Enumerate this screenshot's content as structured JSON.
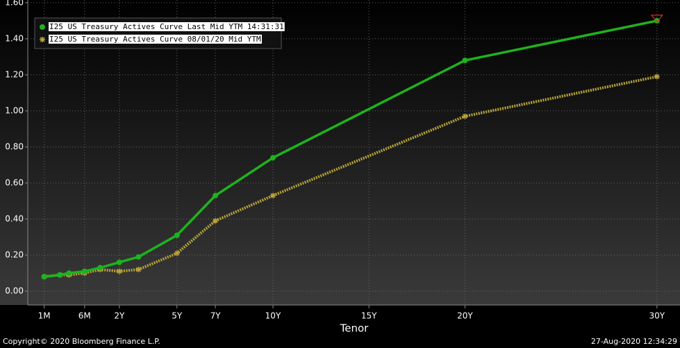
{
  "chart_data": {
    "type": "line",
    "x_label": "Tenor",
    "x": [
      0.083,
      0.167,
      0.25,
      0.5,
      1,
      2,
      3,
      5,
      7,
      10,
      20,
      30
    ],
    "series": [
      {
        "name": "I25 US Treasury Actives Curve Last Mid YTM 14:31:31",
        "color": "#1db31d",
        "marker": "circle",
        "values": [
          0.08,
          0.09,
          0.1,
          0.11,
          0.13,
          0.16,
          0.19,
          0.31,
          0.53,
          0.74,
          1.28,
          1.5
        ]
      },
      {
        "name": "I25 US Treasury Actives Curve 08/01/20 Mid YTM",
        "color": "#b8a43a",
        "marker": "star",
        "values": [
          0.08,
          0.09,
          0.09,
          0.1,
          0.12,
          0.11,
          0.12,
          0.21,
          0.39,
          0.53,
          0.97,
          1.19
        ]
      }
    ],
    "xlim": [
      0.04,
      31.2
    ],
    "xticks": [
      {
        "value": 0.083,
        "label": "1M"
      },
      {
        "value": 0.5,
        "label": "6M"
      },
      {
        "value": 2,
        "label": "2Y"
      },
      {
        "value": 5,
        "label": "5Y"
      },
      {
        "value": 7,
        "label": "7Y"
      },
      {
        "value": 10,
        "label": "10Y"
      },
      {
        "value": 15,
        "label": "15Y"
      },
      {
        "value": 20,
        "label": "20Y"
      },
      {
        "value": 30,
        "label": "30Y"
      }
    ],
    "ylim": [
      -0.077,
      1.615
    ],
    "yticks": [
      {
        "value": 0,
        "label": "0.00"
      },
      {
        "value": 0.2,
        "label": "0.20"
      },
      {
        "value": 0.4,
        "label": "0.40"
      },
      {
        "value": 0.6,
        "label": "0.60"
      },
      {
        "value": 0.8,
        "label": "0.80"
      },
      {
        "value": 1,
        "label": "1.00"
      },
      {
        "value": 1.2,
        "label": "1.20"
      },
      {
        "value": 1.4,
        "label": "1.40"
      },
      {
        "value": 1.6,
        "label": "1.60"
      }
    ],
    "grid": true,
    "legend": "top-left",
    "copyright": "Copyright© 2020 Bloomberg Finance L.P.",
    "timestamp": "27-Aug-2020 12:34:29"
  }
}
